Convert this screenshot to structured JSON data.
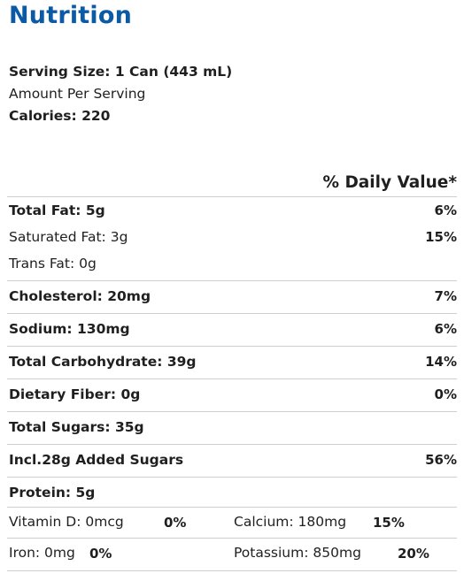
{
  "title": "Nutrition",
  "serving_size": "Serving Size: 1 Can (443 mL)",
  "amount_per_serving": "Amount Per Serving",
  "calories": "Calories: 220",
  "daily_value_header": "% Daily Value*",
  "nutrients": {
    "total_fat": {
      "label": "Total Fat: 5g",
      "pct": "6%"
    },
    "saturated_fat": {
      "label": "Saturated Fat: 3g",
      "pct": "15%"
    },
    "trans_fat": {
      "label": "Trans Fat: 0g"
    },
    "cholesterol": {
      "label": "Cholesterol: 20mg",
      "pct": "7%"
    },
    "sodium": {
      "label": "Sodium: 130mg",
      "pct": "6%"
    },
    "total_carbohydrate": {
      "label": "Total Carbohydrate: 39g",
      "pct": "14%"
    },
    "dietary_fiber": {
      "label": "Dietary Fiber: 0g",
      "pct": "0%"
    },
    "total_sugars": {
      "label": "Total Sugars: 35g"
    },
    "added_sugars": {
      "label": "Incl.28g Added Sugars",
      "pct": "56%"
    },
    "protein": {
      "label": "Protein: 5g"
    }
  },
  "minerals": {
    "vitamin_d": {
      "label": "Vitamin D: 0mcg",
      "pct": "0%"
    },
    "calcium": {
      "label": "Calcium: 180mg",
      "pct": "15%"
    },
    "iron": {
      "label": "Iron: 0mg",
      "pct": "0%"
    },
    "potassium": {
      "label": "Potassium: 850mg",
      "pct": "20%"
    }
  },
  "colors": {
    "title": "#0b5aa6",
    "rule": "#cfcfcf",
    "text": "#1f1f1f"
  }
}
